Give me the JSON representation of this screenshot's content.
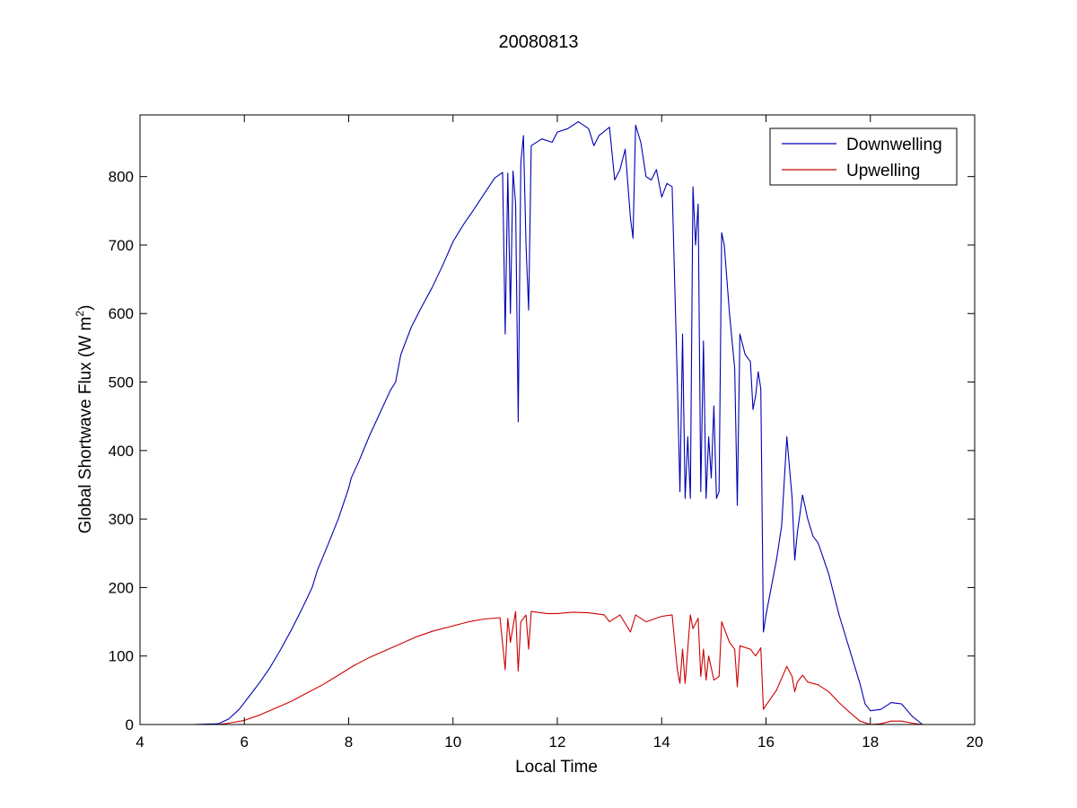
{
  "chart_data": {
    "type": "line",
    "title": "20080813",
    "xlabel": "Local Time",
    "ylabel": "Global Shortwave Flux (W m",
    "ylabel_sup": "2",
    "ylabel_close": ")",
    "xlim": [
      4,
      20
    ],
    "ylim": [
      0,
      890
    ],
    "xticks": [
      4,
      6,
      8,
      10,
      12,
      14,
      16,
      18,
      20
    ],
    "yticks": [
      0,
      100,
      200,
      300,
      400,
      500,
      600,
      700,
      800
    ],
    "grid": false,
    "legend_position": "top-right",
    "series": [
      {
        "name": "Downwelling",
        "color": "#0000b3",
        "points": [
          [
            4.85,
            0
          ],
          [
            5.0,
            0
          ],
          [
            5.5,
            1
          ],
          [
            5.7,
            8
          ],
          [
            5.9,
            22
          ],
          [
            6.1,
            42
          ],
          [
            6.3,
            62
          ],
          [
            6.5,
            84
          ],
          [
            6.7,
            110
          ],
          [
            6.9,
            138
          ],
          [
            7.1,
            168
          ],
          [
            7.3,
            200
          ],
          [
            7.4,
            225
          ],
          [
            7.6,
            262
          ],
          [
            7.8,
            300
          ],
          [
            8.0,
            345
          ],
          [
            8.05,
            360
          ],
          [
            8.2,
            385
          ],
          [
            8.4,
            422
          ],
          [
            8.6,
            455
          ],
          [
            8.8,
            488
          ],
          [
            8.9,
            500
          ],
          [
            9.0,
            540
          ],
          [
            9.2,
            580
          ],
          [
            9.4,
            610
          ],
          [
            9.6,
            638
          ],
          [
            9.8,
            670
          ],
          [
            10.0,
            705
          ],
          [
            10.2,
            730
          ],
          [
            10.4,
            752
          ],
          [
            10.6,
            775
          ],
          [
            10.8,
            798
          ],
          [
            10.95,
            806
          ],
          [
            11.0,
            570
          ],
          [
            11.05,
            805
          ],
          [
            11.1,
            600
          ],
          [
            11.15,
            808
          ],
          [
            11.2,
            760
          ],
          [
            11.25,
            442
          ],
          [
            11.3,
            820
          ],
          [
            11.35,
            860
          ],
          [
            11.4,
            700
          ],
          [
            11.45,
            605
          ],
          [
            11.5,
            845
          ],
          [
            11.7,
            855
          ],
          [
            11.9,
            850
          ],
          [
            12.0,
            865
          ],
          [
            12.2,
            870
          ],
          [
            12.4,
            880
          ],
          [
            12.6,
            870
          ],
          [
            12.7,
            845
          ],
          [
            12.8,
            860
          ],
          [
            13.0,
            872
          ],
          [
            13.1,
            795
          ],
          [
            13.2,
            810
          ],
          [
            13.3,
            840
          ],
          [
            13.4,
            740
          ],
          [
            13.45,
            710
          ],
          [
            13.5,
            875
          ],
          [
            13.6,
            850
          ],
          [
            13.7,
            800
          ],
          [
            13.8,
            795
          ],
          [
            13.9,
            810
          ],
          [
            14.0,
            770
          ],
          [
            14.1,
            790
          ],
          [
            14.2,
            785
          ],
          [
            14.3,
            500
          ],
          [
            14.35,
            340
          ],
          [
            14.4,
            570
          ],
          [
            14.45,
            330
          ],
          [
            14.5,
            420
          ],
          [
            14.55,
            330
          ],
          [
            14.6,
            785
          ],
          [
            14.65,
            700
          ],
          [
            14.7,
            760
          ],
          [
            14.75,
            340
          ],
          [
            14.8,
            560
          ],
          [
            14.85,
            330
          ],
          [
            14.9,
            420
          ],
          [
            14.95,
            360
          ],
          [
            15.0,
            465
          ],
          [
            15.05,
            330
          ],
          [
            15.1,
            340
          ],
          [
            15.15,
            718
          ],
          [
            15.2,
            700
          ],
          [
            15.3,
            600
          ],
          [
            15.4,
            520
          ],
          [
            15.45,
            320
          ],
          [
            15.5,
            570
          ],
          [
            15.6,
            540
          ],
          [
            15.7,
            530
          ],
          [
            15.75,
            460
          ],
          [
            15.8,
            480
          ],
          [
            15.85,
            515
          ],
          [
            15.9,
            490
          ],
          [
            15.95,
            135
          ],
          [
            16.0,
            160
          ],
          [
            16.1,
            200
          ],
          [
            16.2,
            240
          ],
          [
            16.3,
            290
          ],
          [
            16.4,
            420
          ],
          [
            16.5,
            330
          ],
          [
            16.55,
            240
          ],
          [
            16.6,
            280
          ],
          [
            16.7,
            335
          ],
          [
            16.8,
            300
          ],
          [
            16.9,
            275
          ],
          [
            17.0,
            265
          ],
          [
            17.2,
            220
          ],
          [
            17.4,
            160
          ],
          [
            17.6,
            110
          ],
          [
            17.8,
            60
          ],
          [
            17.9,
            30
          ],
          [
            18.0,
            20
          ],
          [
            18.2,
            22
          ],
          [
            18.4,
            32
          ],
          [
            18.6,
            30
          ],
          [
            18.8,
            12
          ],
          [
            19.0,
            0
          ]
        ]
      },
      {
        "name": "Upwelling",
        "color": "#cc0000",
        "points": [
          [
            4.85,
            0
          ],
          [
            5.0,
            0
          ],
          [
            5.5,
            0
          ],
          [
            5.7,
            2
          ],
          [
            6.0,
            6
          ],
          [
            6.3,
            14
          ],
          [
            6.6,
            24
          ],
          [
            6.9,
            34
          ],
          [
            7.2,
            46
          ],
          [
            7.5,
            58
          ],
          [
            7.8,
            72
          ],
          [
            8.1,
            86
          ],
          [
            8.4,
            98
          ],
          [
            8.7,
            108
          ],
          [
            9.0,
            118
          ],
          [
            9.3,
            128
          ],
          [
            9.6,
            136
          ],
          [
            10.0,
            144
          ],
          [
            10.3,
            150
          ],
          [
            10.6,
            154
          ],
          [
            10.9,
            156
          ],
          [
            11.0,
            80
          ],
          [
            11.05,
            155
          ],
          [
            11.1,
            120
          ],
          [
            11.2,
            165
          ],
          [
            11.25,
            78
          ],
          [
            11.3,
            150
          ],
          [
            11.4,
            160
          ],
          [
            11.45,
            110
          ],
          [
            11.5,
            165
          ],
          [
            11.8,
            162
          ],
          [
            12.0,
            162
          ],
          [
            12.3,
            164
          ],
          [
            12.6,
            163
          ],
          [
            12.9,
            160
          ],
          [
            13.0,
            150
          ],
          [
            13.2,
            160
          ],
          [
            13.4,
            135
          ],
          [
            13.5,
            160
          ],
          [
            13.7,
            150
          ],
          [
            14.0,
            158
          ],
          [
            14.2,
            160
          ],
          [
            14.3,
            80
          ],
          [
            14.35,
            60
          ],
          [
            14.4,
            110
          ],
          [
            14.45,
            60
          ],
          [
            14.55,
            160
          ],
          [
            14.6,
            140
          ],
          [
            14.7,
            155
          ],
          [
            14.75,
            70
          ],
          [
            14.8,
            110
          ],
          [
            14.85,
            65
          ],
          [
            14.9,
            100
          ],
          [
            15.0,
            65
          ],
          [
            15.1,
            70
          ],
          [
            15.15,
            150
          ],
          [
            15.3,
            120
          ],
          [
            15.4,
            110
          ],
          [
            15.45,
            55
          ],
          [
            15.5,
            115
          ],
          [
            15.7,
            110
          ],
          [
            15.8,
            100
          ],
          [
            15.9,
            112
          ],
          [
            15.95,
            22
          ],
          [
            16.0,
            28
          ],
          [
            16.2,
            50
          ],
          [
            16.4,
            85
          ],
          [
            16.5,
            70
          ],
          [
            16.55,
            48
          ],
          [
            16.6,
            62
          ],
          [
            16.7,
            72
          ],
          [
            16.8,
            62
          ],
          [
            17.0,
            58
          ],
          [
            17.2,
            48
          ],
          [
            17.4,
            32
          ],
          [
            17.6,
            18
          ],
          [
            17.8,
            5
          ],
          [
            18.0,
            0
          ],
          [
            18.2,
            1
          ],
          [
            18.4,
            5
          ],
          [
            18.6,
            5
          ],
          [
            18.8,
            2
          ],
          [
            19.0,
            0
          ]
        ]
      }
    ]
  }
}
